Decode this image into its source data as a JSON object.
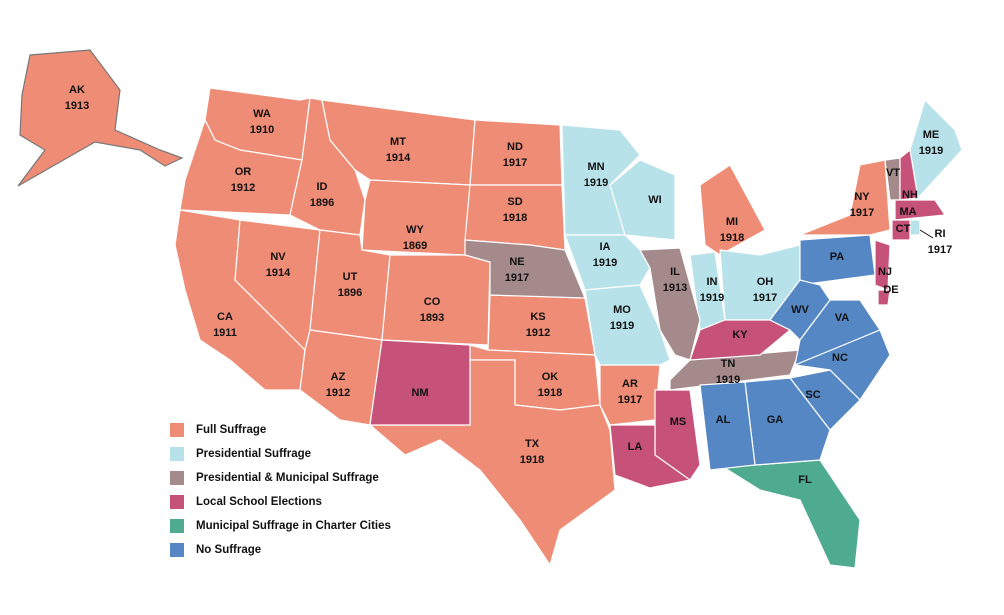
{
  "legend": [
    {
      "label": "Full Suffrage",
      "color": "#ef8c76",
      "states": [
        {
          "abbr": "AK",
          "year": 1913
        },
        {
          "abbr": "WA",
          "year": 1910
        },
        {
          "abbr": "OR",
          "year": 1912
        },
        {
          "abbr": "CA",
          "year": 1911
        },
        {
          "abbr": "NV",
          "year": 1914
        },
        {
          "abbr": "ID",
          "year": 1896
        },
        {
          "abbr": "MT",
          "year": 1914
        },
        {
          "abbr": "WY",
          "year": 1869
        },
        {
          "abbr": "UT",
          "year": 1896
        },
        {
          "abbr": "AZ",
          "year": 1912
        },
        {
          "abbr": "CO",
          "year": 1893
        },
        {
          "abbr": "ND",
          "year": 1917
        },
        {
          "abbr": "SD",
          "year": 1918
        },
        {
          "abbr": "KS",
          "year": 1912
        },
        {
          "abbr": "OK",
          "year": 1918
        },
        {
          "abbr": "TX",
          "year": 1918
        },
        {
          "abbr": "AR",
          "year": 1917
        },
        {
          "abbr": "NY",
          "year": 1917
        },
        {
          "abbr": "MI",
          "year": 1918
        }
      ]
    },
    {
      "label": "Presidential Suffrage",
      "color": "#b7e2ea",
      "states": [
        {
          "abbr": "MN",
          "year": 1919
        },
        {
          "abbr": "WI"
        },
        {
          "abbr": "IA",
          "year": 1919
        },
        {
          "abbr": "MO",
          "year": 1919
        },
        {
          "abbr": "IN",
          "year": 1919
        },
        {
          "abbr": "OH",
          "year": 1917
        },
        {
          "abbr": "ME",
          "year": 1919
        },
        {
          "abbr": "RI",
          "year": 1917
        }
      ]
    },
    {
      "label": "Presidential & Municipal Suffrage",
      "color": "#a58a8c",
      "states": [
        {
          "abbr": "NE",
          "year": 1917
        },
        {
          "abbr": "IL",
          "year": 1913
        },
        {
          "abbr": "TN",
          "year": 1919
        },
        {
          "abbr": "VT"
        }
      ]
    },
    {
      "label": "Local School Elections",
      "color": "#c6527a",
      "states": [
        {
          "abbr": "NM"
        },
        {
          "abbr": "KY"
        },
        {
          "abbr": "MS"
        },
        {
          "abbr": "LA"
        },
        {
          "abbr": "NH"
        },
        {
          "abbr": "MA"
        },
        {
          "abbr": "CT"
        },
        {
          "abbr": "NJ"
        },
        {
          "abbr": "DE"
        }
      ]
    },
    {
      "label": "Municipal Suffrage in Charter Cities",
      "color": "#4eab8f",
      "states": [
        {
          "abbr": "FL"
        }
      ]
    },
    {
      "label": "No Suffrage",
      "color": "#5587c4",
      "states": [
        {
          "abbr": "PA"
        },
        {
          "abbr": "WV"
        },
        {
          "abbr": "VA"
        },
        {
          "abbr": "NC"
        },
        {
          "abbr": "SC"
        },
        {
          "abbr": "GA"
        },
        {
          "abbr": "AL"
        }
      ]
    }
  ]
}
